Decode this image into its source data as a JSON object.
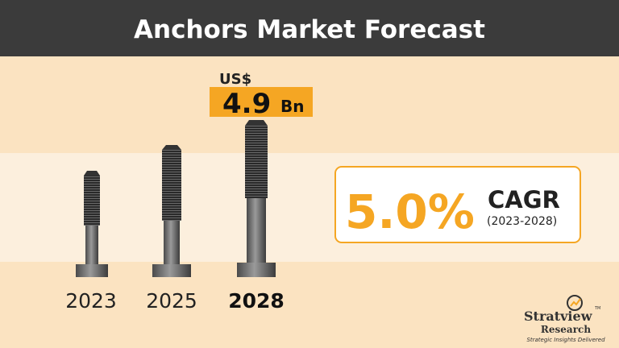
{
  "header": {
    "title": "Anchors Market Forecast"
  },
  "forecast": {
    "prefix": "US$",
    "value": "4.9",
    "unit": "Bn"
  },
  "cagr": {
    "value": "5.0%",
    "label": "CAGR",
    "period": "(2023-2028)"
  },
  "years": [
    "2023",
    "2025",
    "2028"
  ],
  "logo": {
    "name": "Stratview",
    "sub": "Research",
    "tagline": "Strategic Insights Delivered",
    "tm": "TM"
  }
}
